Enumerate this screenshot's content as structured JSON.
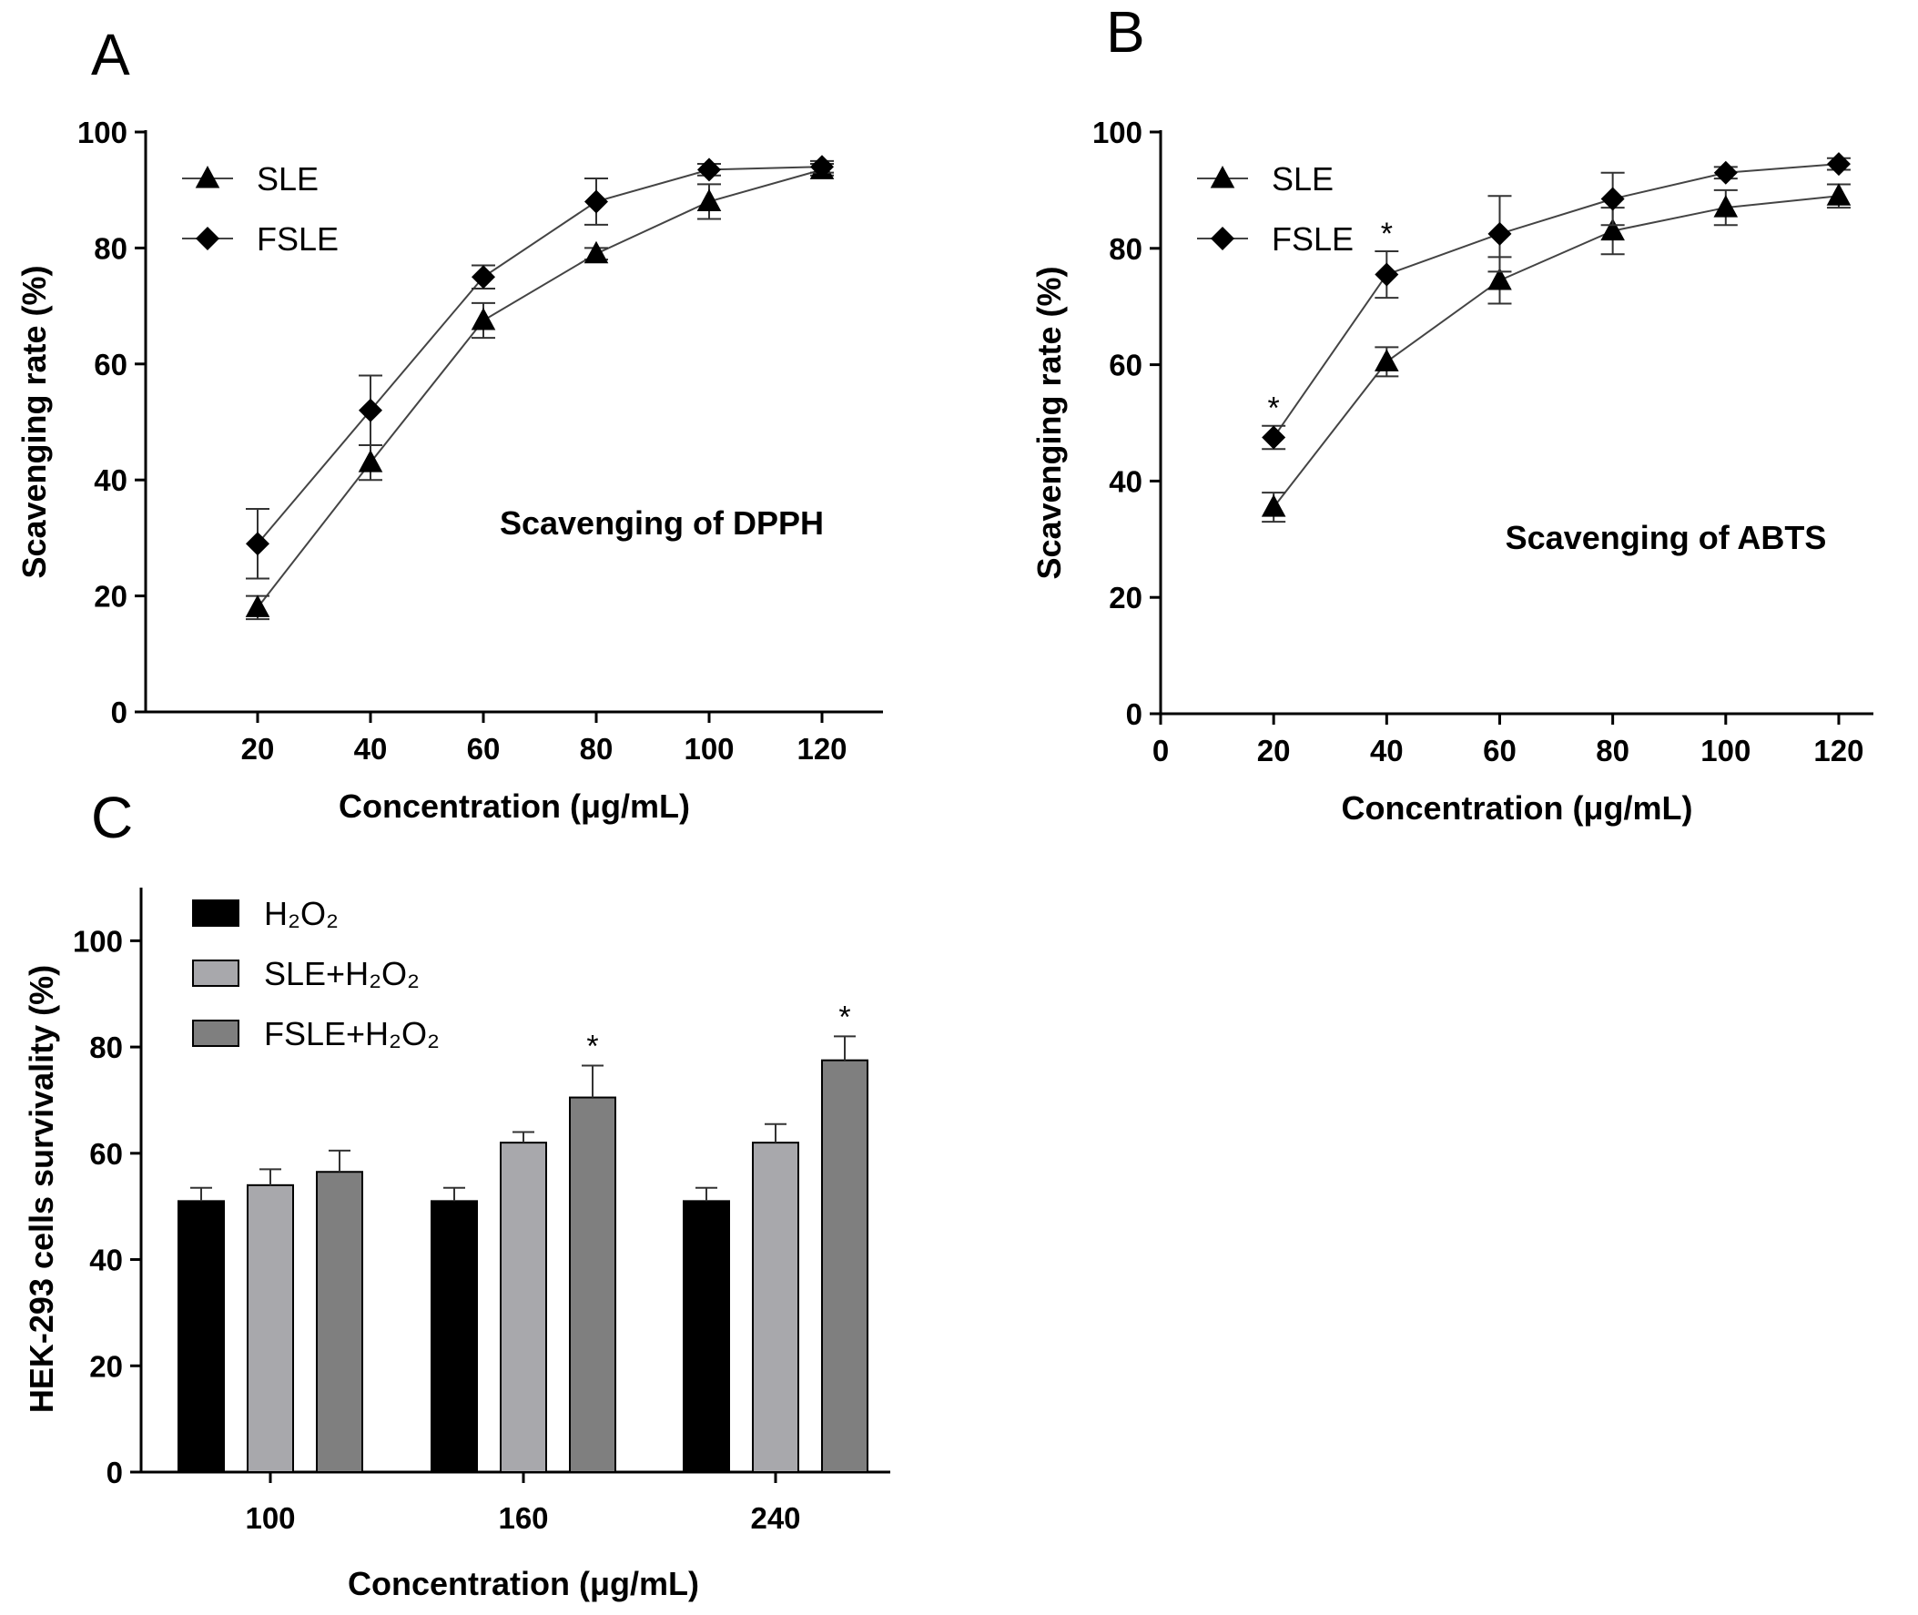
{
  "chart_data": [
    {
      "id": "A",
      "type": "line",
      "panel_label": "A",
      "annotation": "Scavenging of DPPH",
      "xlabel": "Concentration (μg/mL)",
      "ylabel": "Scavenging rate (%)",
      "xlim": [
        0,
        130
      ],
      "ylim": [
        0,
        100
      ],
      "xticks": [
        20,
        40,
        60,
        80,
        100,
        120
      ],
      "yticks": [
        0,
        20,
        40,
        60,
        80,
        100
      ],
      "legend_position": "top-left",
      "series": [
        {
          "name": "SLE",
          "marker": "triangle",
          "x": [
            20,
            40,
            60,
            80,
            100,
            120
          ],
          "y": [
            18,
            43,
            67.5,
            79,
            88,
            93.5
          ],
          "err": [
            2,
            3,
            3,
            1,
            3,
            1
          ],
          "sig": []
        },
        {
          "name": "FSLE",
          "marker": "diamond",
          "x": [
            20,
            40,
            60,
            80,
            100,
            120
          ],
          "y": [
            29,
            52,
            75,
            88,
            93.5,
            94
          ],
          "err": [
            6,
            6,
            2,
            4,
            1,
            1
          ],
          "sig": []
        }
      ]
    },
    {
      "id": "B",
      "type": "line",
      "panel_label": "B",
      "annotation": "Scavenging of ABTS",
      "xlabel": "Concentration (μg/mL)",
      "ylabel": "Scavenging rate (%)",
      "xlim": [
        0,
        130
      ],
      "ylim": [
        0,
        100
      ],
      "xticks": [
        0,
        20,
        40,
        60,
        80,
        100,
        120
      ],
      "yticks": [
        0,
        20,
        40,
        60,
        80,
        100
      ],
      "legend_position": "top-left",
      "series": [
        {
          "name": "SLE",
          "marker": "triangle",
          "x": [
            20,
            40,
            60,
            80,
            100,
            120
          ],
          "y": [
            35.5,
            60.5,
            74.5,
            83,
            87,
            89
          ],
          "err": [
            2.5,
            2.5,
            4,
            4,
            3,
            2
          ],
          "sig": []
        },
        {
          "name": "FSLE",
          "marker": "diamond",
          "x": [
            20,
            40,
            60,
            80,
            100,
            120
          ],
          "y": [
            47.5,
            75.5,
            82.5,
            88.5,
            93,
            94.5
          ],
          "err": [
            2,
            4,
            6.5,
            4.5,
            1,
            1
          ],
          "sig": [
            20,
            40
          ]
        }
      ]
    },
    {
      "id": "C",
      "type": "bar",
      "panel_label": "C",
      "xlabel": "Concentration (μg/mL)",
      "ylabel": "HEK-293 cells survivality (%)",
      "ylim": [
        0,
        110
      ],
      "yticks": [
        0,
        20,
        40,
        60,
        80,
        100
      ],
      "categories": [
        "100",
        "160",
        "240"
      ],
      "legend_position": "top-left",
      "series": [
        {
          "name": "H₂O₂",
          "color": "#000000",
          "values": [
            51,
            51,
            51
          ],
          "err": [
            2.5,
            2.5,
            2.5
          ],
          "sig": [
            false,
            false,
            false
          ]
        },
        {
          "name": "SLE+H₂O₂",
          "color": "#a8a8ac",
          "values": [
            54,
            62,
            62
          ],
          "err": [
            3,
            2,
            3.5
          ],
          "sig": [
            false,
            false,
            false
          ]
        },
        {
          "name": "FSLE+H₂O₂",
          "color": "#7f7f7f",
          "values": [
            56.5,
            70.5,
            77.5
          ],
          "err": [
            4,
            6,
            4.5
          ],
          "sig": [
            false,
            true,
            true
          ]
        }
      ]
    }
  ],
  "significance_symbol": "*"
}
